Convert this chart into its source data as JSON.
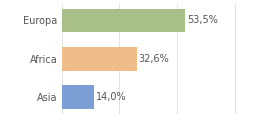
{
  "categories": [
    "Asia",
    "Africa",
    "Europa"
  ],
  "values": [
    14.0,
    32.6,
    53.5
  ],
  "labels": [
    "14,0%",
    "32,6%",
    "53,5%"
  ],
  "bar_colors": [
    "#7b9fd4",
    "#f0bc8a",
    "#a8bf8a"
  ],
  "background_color": "#ffffff",
  "xlim": [
    0,
    80
  ],
  "bar_height": 0.62,
  "label_fontsize": 7.0,
  "tick_fontsize": 7.0,
  "grid_color": "#dddddd",
  "text_color": "#555555"
}
